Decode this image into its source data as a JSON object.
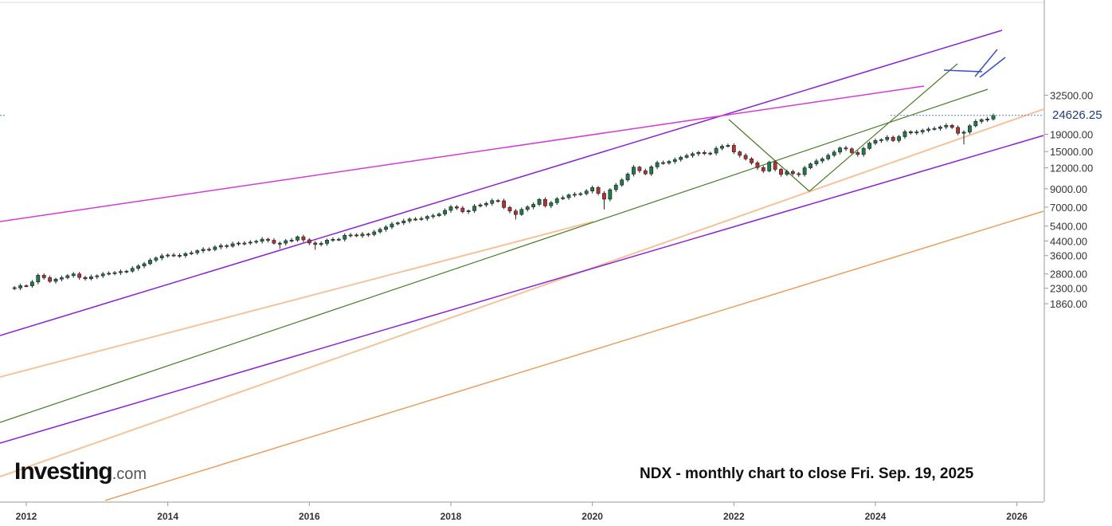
{
  "chart_data": {
    "type": "candlestick",
    "symbol_caption": "NDX - monthly chart to close Fri. Sep. 19, 2025",
    "y_scale": "log",
    "ylim": [
      1700,
      33500
    ],
    "y_ticks": [
      {
        "value": 32500,
        "label": "32500.00"
      },
      {
        "value": 19000,
        "label": "19000.00"
      },
      {
        "value": 15000,
        "label": "15000.00"
      },
      {
        "value": 12000,
        "label": "12000.00"
      },
      {
        "value": 9000,
        "label": "9000.00"
      },
      {
        "value": 7000,
        "label": "7000.00"
      },
      {
        "value": 5400,
        "label": "5400.00"
      },
      {
        "value": 4400,
        "label": "4400.00"
      },
      {
        "value": 3600,
        "label": "3600.00"
      },
      {
        "value": 2800,
        "label": "2800.00"
      },
      {
        "value": 2300,
        "label": "2300.00"
      },
      {
        "value": 1860,
        "label": "1860.00"
      }
    ],
    "x_ticks": [
      "2012",
      "2014",
      "2016",
      "2018",
      "2020",
      "2022",
      "2024",
      "2026"
    ],
    "last_price": {
      "value": 24626.25,
      "label": "24626.25"
    },
    "monthly_closes_anchor": [
      [
        "2011-10",
        2320
      ],
      [
        "2012-01",
        2380
      ],
      [
        "2012-03",
        2750
      ],
      [
        "2012-05",
        2530
      ],
      [
        "2012-09",
        2800
      ],
      [
        "2012-11",
        2620
      ],
      [
        "2013-01",
        2730
      ],
      [
        "2013-04",
        2850
      ],
      [
        "2013-06",
        2910
      ],
      [
        "2013-09",
        3220
      ],
      [
        "2013-12",
        3590
      ],
      [
        "2014-03",
        3600
      ],
      [
        "2014-06",
        3850
      ],
      [
        "2014-09",
        4050
      ],
      [
        "2014-12",
        4230
      ],
      [
        "2015-03",
        4330
      ],
      [
        "2015-05",
        4510
      ],
      [
        "2015-08",
        4270
      ],
      [
        "2015-11",
        4660
      ],
      [
        "2016-01",
        4280
      ],
      [
        "2016-02",
        4200
      ],
      [
        "2016-05",
        4500
      ],
      [
        "2016-08",
        4780
      ],
      [
        "2016-11",
        4810
      ],
      [
        "2017-02",
        5330
      ],
      [
        "2017-05",
        5790
      ],
      [
        "2017-08",
        5990
      ],
      [
        "2017-11",
        6370
      ],
      [
        "2018-01",
        7030
      ],
      [
        "2018-03",
        6580
      ],
      [
        "2018-08",
        7660
      ],
      [
        "2018-09",
        7630
      ],
      [
        "2018-10",
        6970
      ],
      [
        "2018-12",
        6330
      ],
      [
        "2019-02",
        7020
      ],
      [
        "2019-04",
        7780
      ],
      [
        "2019-05",
        7130
      ],
      [
        "2019-07",
        7850
      ],
      [
        "2019-12",
        8730
      ],
      [
        "2020-01",
        9150
      ],
      [
        "2020-02",
        8460
      ],
      [
        "2020-03",
        7810
      ],
      [
        "2020-04",
        8890
      ],
      [
        "2020-06",
        10160
      ],
      [
        "2020-08",
        12110
      ],
      [
        "2020-10",
        11050
      ],
      [
        "2020-12",
        12890
      ],
      [
        "2021-02",
        13090
      ],
      [
        "2021-04",
        13860
      ],
      [
        "2021-06",
        14550
      ],
      [
        "2021-09",
        14690
      ],
      [
        "2021-11",
        16140
      ],
      [
        "2021-12",
        16320
      ],
      [
        "2022-01",
        14930
      ],
      [
        "2022-02",
        14240
      ],
      [
        "2022-04",
        12850
      ],
      [
        "2022-06",
        11500
      ],
      [
        "2022-07",
        12950
      ],
      [
        "2022-09",
        10970
      ],
      [
        "2022-10",
        11400
      ],
      [
        "2022-12",
        10940
      ],
      [
        "2023-01",
        12000
      ],
      [
        "2023-03",
        13180
      ],
      [
        "2023-05",
        14250
      ],
      [
        "2023-07",
        15760
      ],
      [
        "2023-10",
        14410
      ],
      [
        "2023-12",
        16830
      ],
      [
        "2024-03",
        18250
      ],
      [
        "2024-04",
        17440
      ],
      [
        "2024-06",
        19680
      ],
      [
        "2024-07",
        19360
      ],
      [
        "2024-09",
        20060
      ],
      [
        "2024-12",
        21010
      ],
      [
        "2025-01",
        21480
      ],
      [
        "2025-02",
        20880
      ],
      [
        "2025-03",
        19280
      ],
      [
        "2025-04",
        19570
      ],
      [
        "2025-05",
        21340
      ],
      [
        "2025-06",
        22680
      ],
      [
        "2025-07",
        23220
      ],
      [
        "2025-08",
        23420
      ],
      [
        "2025-09",
        24626
      ]
    ]
  },
  "branding": {
    "logo_text": "Investing",
    "logo_suffix": ".com"
  },
  "colors": {
    "up_candle": "#1f7a4d",
    "down_candle": "#b83232",
    "green_channel": "#4a7a2a",
    "magenta_line": "#d63ad6",
    "purple_line": "#8a22d6",
    "peach_line": "#f5c29a",
    "orange_line": "#e8a060",
    "blue_line": "#3a4ec0",
    "last_price_dash": "#5a7fd0",
    "text_dark": "#111111",
    "axis_text": "#333333"
  }
}
